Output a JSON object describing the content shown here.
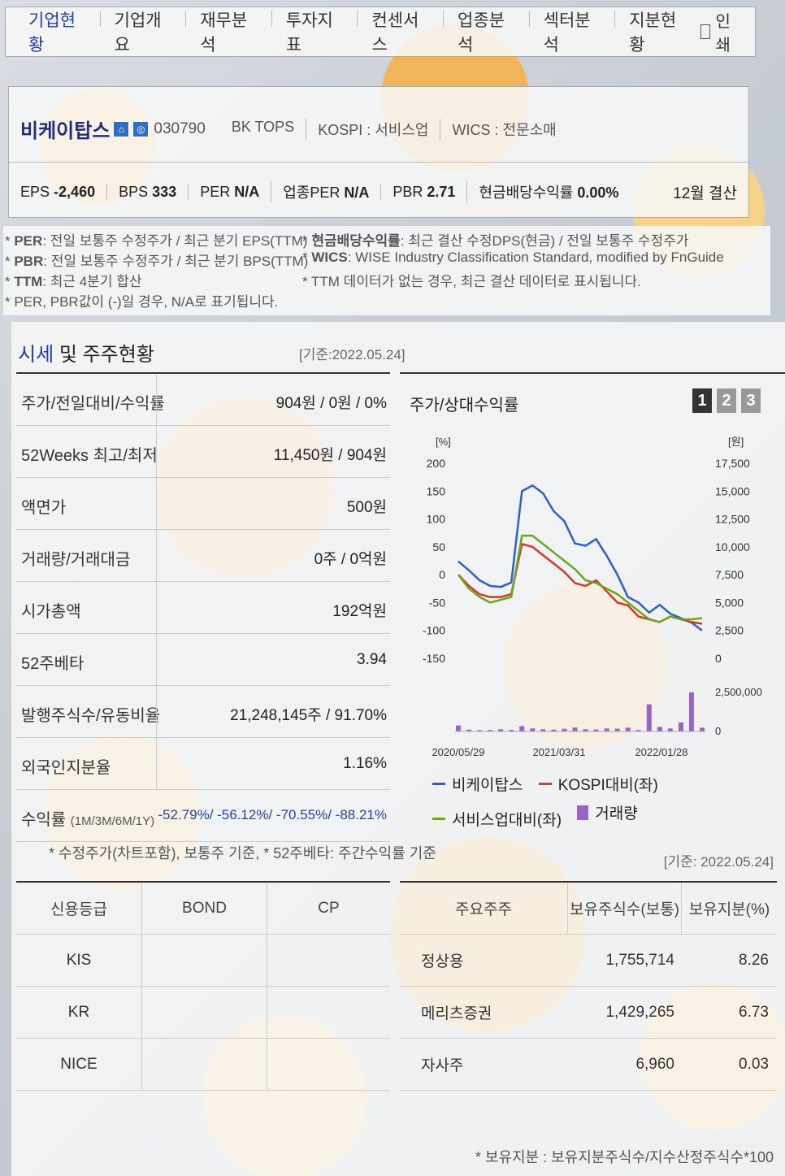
{
  "tabs": [
    "기업현황",
    "기업개요",
    "재무분석",
    "투자지표",
    "컨센서스",
    "업종분석",
    "섹터분석",
    "지분현황"
  ],
  "print_label": "인쇄",
  "company": {
    "name": "비케이탑스",
    "code": "030790",
    "eng_name": "BK TOPS",
    "market": "KOSPI : 서비스업",
    "wics": "WICS : 전문소매",
    "metrics": [
      {
        "label": "EPS",
        "value": "-2,460"
      },
      {
        "label": "BPS",
        "value": "333"
      },
      {
        "label": "PER",
        "value": "N/A"
      },
      {
        "label": "업종PER",
        "value": "N/A"
      },
      {
        "label": "PBR",
        "value": "2.71"
      },
      {
        "label": "현금배당수익률",
        "value": "0.00%"
      }
    ],
    "settlement": "12월 결산"
  },
  "notes": {
    "per": {
      "key": "PER",
      "text": ": 전일 보통주 수정주가 / 최근 분기 EPS(TTM)"
    },
    "pbr": {
      "key": "PBR",
      "text": ": 전일 보통주 수정주가 / 최근 분기 BPS(TTM)"
    },
    "ttm": {
      "key": "TTM",
      "text": ": 최근 4분기 합산"
    },
    "na": "* PER, PBR값이 (-)일 경우, N/A로 표기됩니다.",
    "div": {
      "key": "현금배당수익률",
      "text": ": 최근 결산 수정DPS(현금) / 전일 보통주 수정주가"
    },
    "wics": {
      "key": "WICS",
      "text": ": WISE Industry Classification Standard, modified by FnGuide"
    },
    "ttm2": "* TTM 데이터가 없는 경우, 최근 결산 데이터로 표시됩니다."
  },
  "section": {
    "title_hl": "시세",
    "title_rest": " 및 주주현황",
    "date": "[기준:2022.05.24]"
  },
  "rows": [
    {
      "label": "주가/전일대비/수익률",
      "value": "904원 / 0원 / 0%"
    },
    {
      "label": "52Weeks 최고/최저",
      "value": "11,450원 / 904원"
    },
    {
      "label": "액면가",
      "value": "500원"
    },
    {
      "label": "거래량/거래대금",
      "value": "0주 / 0억원"
    },
    {
      "label": "시가총액",
      "value": "192억원"
    },
    {
      "label": "52주베타",
      "value": "3.94"
    },
    {
      "label": "발행주식수/유동비율",
      "value": "21,248,145주 / 91.70%"
    },
    {
      "label": "외국인지분율",
      "value": "1.16%"
    }
  ],
  "returns": {
    "label": "수익률",
    "sub": "(1M/3M/6M/1Y)",
    "value": "-52.79%/ -56.12%/ -70.55%/ -88.21%"
  },
  "foot1": "* 수정주가(차트포함), 보통주 기준, * 52주베타: 주간수익률 기준",
  "foot2": "[기준: 2022.05.24]",
  "chart": {
    "title": "주가/상대수익률",
    "pages": [
      "1",
      "2",
      "3"
    ]
  },
  "chart_data": {
    "type": "line",
    "left_unit": "[%]",
    "right_unit": "[원]",
    "left_ticks": [
      200,
      150,
      100,
      50,
      0,
      -50,
      -100,
      -150
    ],
    "right_ticks": [
      "17,500",
      "15,000",
      "12,500",
      "10,000",
      "7,500",
      "5,000",
      "2,500",
      "0"
    ],
    "volume_ticks": [
      "2,500,000",
      "0"
    ],
    "x_labels": [
      "2020/05/29",
      "2021/03/31",
      "2022/01/28"
    ],
    "ylim_left": [
      -150,
      200
    ],
    "ylim_right": [
      0,
      17500
    ],
    "series": [
      {
        "name": "비케이탑스",
        "color": "#2b5fc9",
        "axis": "right",
        "values": [
          8700,
          7900,
          7000,
          6500,
          6400,
          6800,
          15000,
          15500,
          14800,
          13200,
          12300,
          10300,
          10100,
          10700,
          9200,
          7500,
          5500,
          5000,
          4100,
          4800,
          4000,
          3600,
          3200,
          2500
        ]
      },
      {
        "name": "KOSPI대비(좌)",
        "color": "#d13a2a",
        "axis": "left",
        "values": [
          0,
          -20,
          -35,
          -40,
          -40,
          -35,
          55,
          50,
          35,
          20,
          5,
          -15,
          -20,
          -10,
          -30,
          -50,
          -55,
          -75,
          -80,
          -85,
          -75,
          -80,
          -85,
          -88
        ]
      },
      {
        "name": "서비스업대비(좌)",
        "color": "#6aa623",
        "axis": "left",
        "values": [
          0,
          -25,
          -40,
          -50,
          -45,
          -40,
          70,
          70,
          55,
          40,
          25,
          10,
          -10,
          -15,
          -25,
          -35,
          -50,
          -65,
          -80,
          -85,
          -75,
          -80,
          -80,
          -78
        ]
      }
    ],
    "volume": {
      "name": "거래량",
      "color": "#9a63c7",
      "values": [
        400000,
        120000,
        80000,
        90000,
        150000,
        100000,
        350000,
        200000,
        150000,
        120000,
        180000,
        260000,
        150000,
        130000,
        200000,
        180000,
        250000,
        100000,
        1800000,
        300000,
        200000,
        600000,
        2600000,
        250000
      ]
    }
  },
  "credit": {
    "headers": [
      "신용등급",
      "BOND",
      "CP"
    ],
    "rows": [
      [
        "KIS",
        "",
        ""
      ],
      [
        "KR",
        "",
        ""
      ],
      [
        "NICE",
        "",
        ""
      ]
    ]
  },
  "holders": {
    "headers": [
      "주요주주",
      "보유주식수(보통)",
      "보유지분(%)"
    ],
    "rows": [
      [
        "정상용",
        "1,755,714",
        "8.26"
      ],
      [
        "메리츠증권",
        "1,429,265",
        "6.73"
      ],
      [
        "자사주",
        "6,960",
        "0.03"
      ]
    ]
  },
  "foot3": "* 보유지분 : 보유지분주식수/지수산정주식수*100"
}
